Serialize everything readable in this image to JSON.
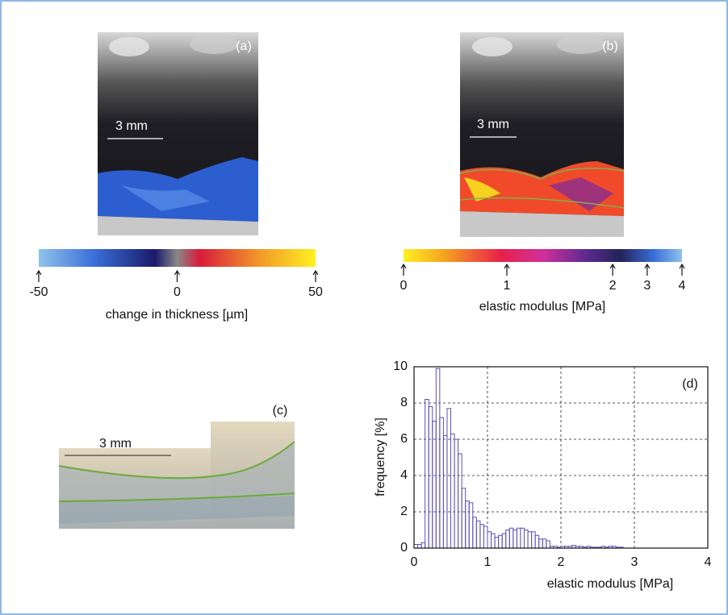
{
  "panel_a": {
    "label": "(a)",
    "scale_bar": "3 mm",
    "colorbar": {
      "lim": [
        -50,
        50
      ],
      "ticks": [
        -50,
        0,
        50
      ],
      "title": "change in thickness [µm]"
    }
  },
  "panel_b": {
    "label": "(b)",
    "scale_bar": "3 mm",
    "colorbar": {
      "ticks": [
        0,
        1,
        2,
        3,
        4
      ],
      "title": "elastic modulus [MPa]"
    }
  },
  "panel_c": {
    "label": "(c)",
    "scale_bar": "3 mm"
  },
  "chart_data": {
    "type": "histogram",
    "annotation": "(d)",
    "xlabel": "elastic modulus [MPa]",
    "ylabel": "frequency [%]",
    "bins": [
      0.0,
      0.05,
      0.1,
      0.15,
      0.2,
      0.25,
      0.3,
      0.35,
      0.4,
      0.45,
      0.5,
      0.55,
      0.6,
      0.65,
      0.7,
      0.75,
      0.8,
      0.85,
      0.9,
      0.95,
      1.0,
      1.05,
      1.1,
      1.15,
      1.2,
      1.25,
      1.3,
      1.35,
      1.4,
      1.45,
      1.5,
      1.55,
      1.6,
      1.65,
      1.7,
      1.75,
      1.8,
      1.85,
      1.9,
      1.95,
      2.0,
      2.05,
      2.1,
      2.15,
      2.2,
      2.25,
      2.3,
      2.35,
      2.4,
      2.45,
      2.5,
      2.55,
      2.6,
      2.65,
      2.7,
      2.75,
      2.8,
      2.85
    ],
    "values": [
      0.2,
      0.2,
      0.3,
      8.2,
      7.8,
      7.0,
      9.9,
      7.2,
      6.2,
      7.7,
      6.3,
      6.0,
      5.2,
      3.3,
      2.6,
      2.5,
      1.7,
      1.5,
      1.3,
      1.2,
      0.9,
      0.8,
      0.6,
      0.7,
      0.8,
      1.0,
      1.1,
      1.0,
      1.1,
      1.1,
      1.0,
      0.9,
      0.9,
      0.7,
      0.5,
      0.5,
      0.4,
      0.1,
      0.1,
      0.05,
      0.1,
      0.1,
      0.1,
      0.15,
      0.1,
      0.1,
      0.05,
      0.1,
      0.05,
      0.05,
      0.05,
      0.1,
      0.05,
      0.1,
      0.1,
      0.05,
      0.05
    ],
    "color": "#5a4fb8",
    "xlim": [
      0,
      4
    ],
    "ylim": [
      0,
      10
    ],
    "xticks": [
      0,
      1,
      2,
      3,
      4
    ],
    "yticks": [
      0,
      2,
      4,
      6,
      8,
      10
    ],
    "grid": true
  }
}
